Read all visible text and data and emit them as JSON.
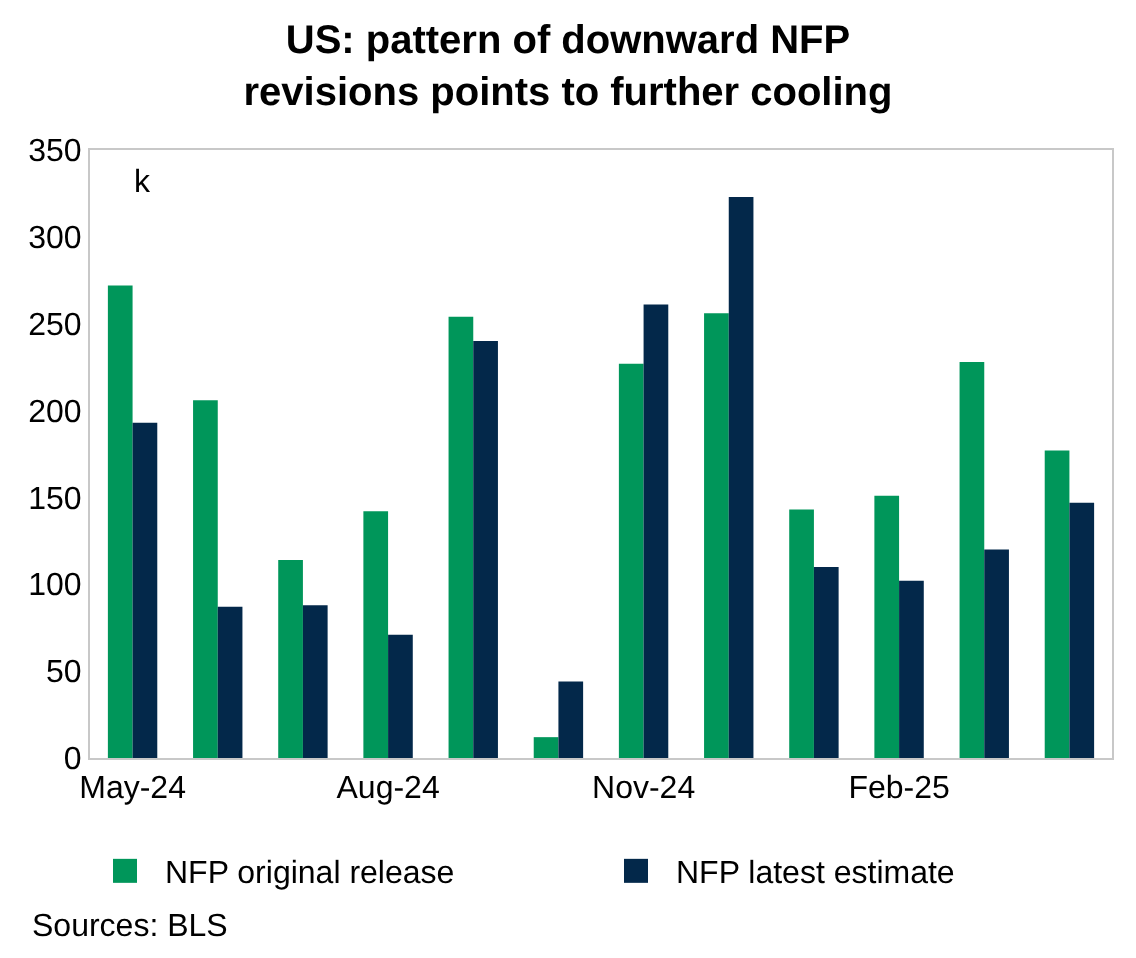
{
  "chart_data": {
    "type": "bar",
    "title": "US: pattern of downward NFP\nrevisions points to further cooling",
    "categories": [
      "May-24",
      null,
      null,
      "Aug-24",
      null,
      null,
      "Nov-24",
      null,
      null,
      "Feb-25",
      null,
      null
    ],
    "series": [
      {
        "name": "NFP original release",
        "color": "#00965a",
        "values": [
          272,
          206,
          114,
          142,
          254,
          12,
          227,
          256,
          143,
          151,
          228,
          177
        ]
      },
      {
        "name": "NFP latest estimate",
        "color": "#03284a",
        "values": [
          193,
          87,
          88,
          71,
          240,
          44,
          261,
          323,
          110,
          102,
          120,
          147
        ]
      }
    ],
    "ylim": [
      0,
      350
    ],
    "yticks": [
      0,
      50,
      100,
      150,
      200,
      250,
      300,
      350
    ],
    "legend": "bottom",
    "annotations": [
      "k",
      "Sources: BLS"
    ]
  }
}
